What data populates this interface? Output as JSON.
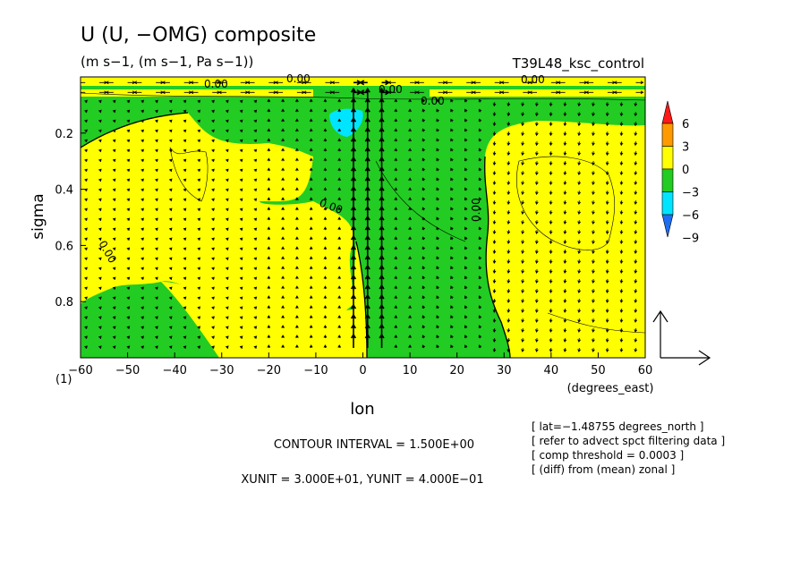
{
  "title": "U (U, −OMG) composite",
  "units": "(m s−1, (m s−1, Pa s−1))",
  "run": "T39L48_ksc_control",
  "panel": "(1)",
  "info": {
    "contour_interval": "CONTOUR INTERVAL = 1.500E+00",
    "vector_units": "XUNIT = 3.000E+01, YUNIT = 4.000E−01",
    "notes": [
      "[ lat=−1.48755 degrees_north ]",
      "[ refer to advect spct filtering data ]",
      "[ comp threshold = 0.0003 ]",
      "[ (diff) from (mean) zonal ]"
    ]
  },
  "contour_labels": [
    "0.00",
    "0.00",
    "0.00",
    "0.00",
    "0.00",
    "0.00",
    "0.00",
    "0.00"
  ],
  "chart_data": {
    "type": "heatmap",
    "title": "U (U, −OMG) composite",
    "xlabel": "lon",
    "x_units": "(degrees_east)",
    "ylabel": "sigma",
    "xlim": [
      -60,
      60
    ],
    "ylim": [
      1.0,
      0.0
    ],
    "xticks": [
      -60,
      -50,
      -40,
      -30,
      -20,
      -10,
      0,
      10,
      20,
      30,
      40,
      50,
      60
    ],
    "xtick_labels": [
      "−60",
      "−50",
      "−40",
      "−30",
      "−20",
      "−10",
      "0",
      "10",
      "20",
      "30",
      "40",
      "50",
      "60"
    ],
    "yticks": [
      0.2,
      0.4,
      0.6,
      0.8
    ],
    "ytick_labels": [
      "0.2",
      "0.4",
      "0.6",
      "0.8"
    ],
    "colorbar": {
      "levels": [
        -9,
        -6,
        -3,
        0,
        3,
        6
      ],
      "labels": [
        "−9",
        "−6",
        "−3",
        "0",
        "3",
        "6"
      ],
      "colors": [
        "#1e6ef0",
        "#00c8ff",
        "#00c8f0",
        "#22c55a",
        "#ffff00",
        "#ff9a00",
        "#ff2020"
      ],
      "bins": [
        "#1e6ef0",
        "#00e5ff",
        "#22cc22",
        "#ffff00",
        "#ff9900",
        "#ff1a1a"
      ]
    },
    "regions": [
      {
        "fill": "#22cc22",
        "meaning": "-3 to 0",
        "x": [
          -60,
          60
        ],
        "sigma": [
          0.0,
          1.0
        ]
      },
      {
        "fill": "#ffff00",
        "meaning": "0 to 3",
        "x": [
          -57,
          -22
        ],
        "sigma": [
          0.18,
          0.99
        ]
      },
      {
        "fill": "#ffff00",
        "meaning": "0 to 3",
        "x": [
          -2,
          4
        ],
        "sigma": [
          0.6,
          1.0
        ]
      },
      {
        "fill": "#ffff00",
        "meaning": "0 to 3",
        "x": [
          27,
          60
        ],
        "sigma": [
          0.15,
          1.0
        ]
      },
      {
        "fill": "#ffff00",
        "meaning": "0 to 3",
        "x": [
          -60,
          60
        ],
        "sigma": [
          0.0,
          0.04
        ]
      },
      {
        "fill": "#00e5ff",
        "meaning": "-6 to -3",
        "x": [
          -6,
          -1
        ],
        "sigma": [
          0.12,
          0.2
        ]
      }
    ],
    "vectors": {
      "x_spacing": 3,
      "reference_x_unit": 30,
      "reference_y_unit": 0.4,
      "strong_updraft_lon": [
        -4,
        4
      ]
    }
  }
}
